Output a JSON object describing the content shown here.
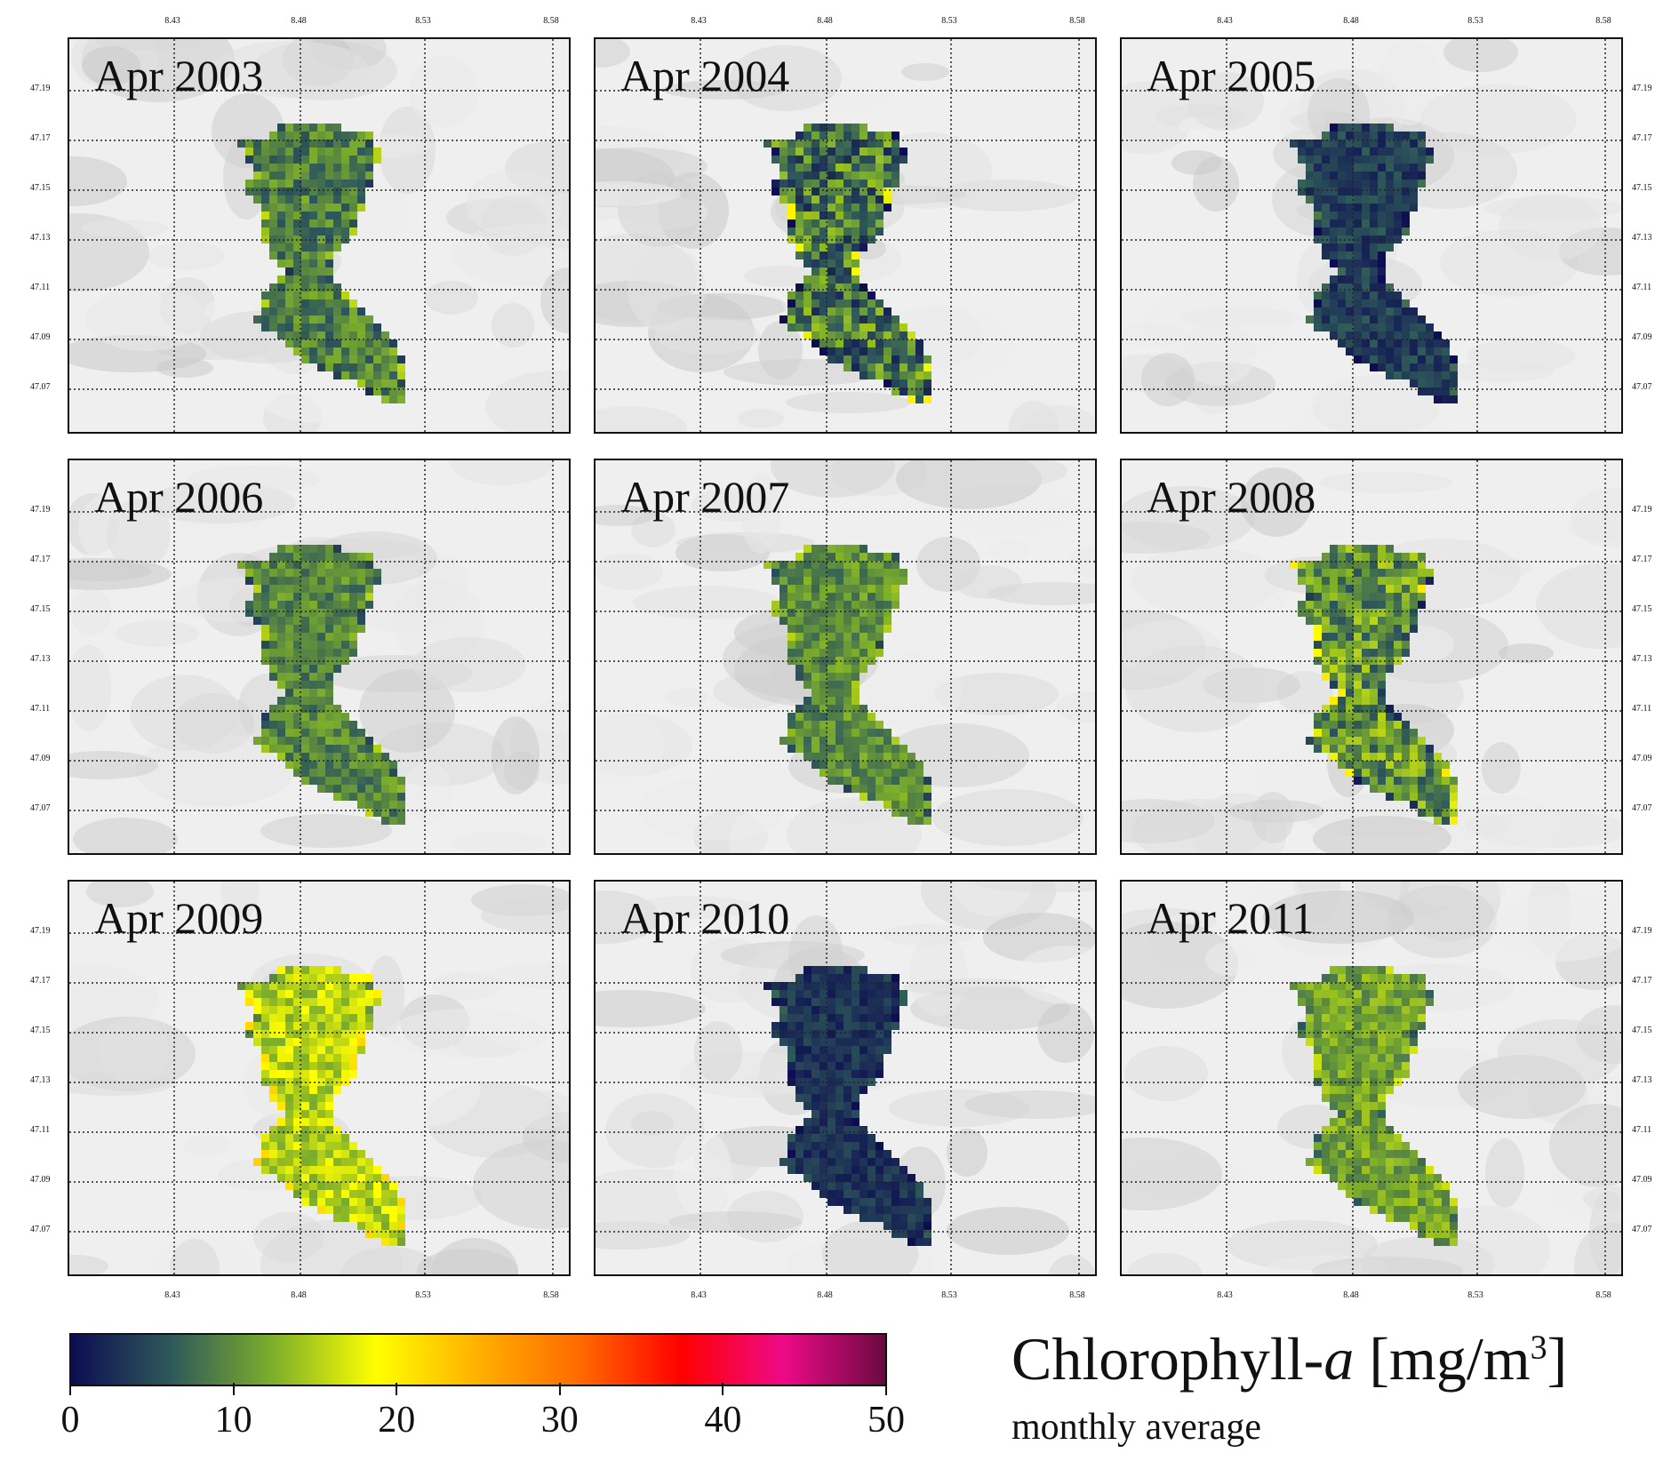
{
  "panels": [
    {
      "title": "Apr 2003",
      "mean": 9.0,
      "spread": 3.5
    },
    {
      "title": "Apr 2004",
      "mean": 8.0,
      "spread": 6.0
    },
    {
      "title": "Apr 2005",
      "mean": 4.0,
      "spread": 2.5
    },
    {
      "title": "Apr 2006",
      "mean": 9.5,
      "spread": 3.0
    },
    {
      "title": "Apr 2007",
      "mean": 10.0,
      "spread": 3.0
    },
    {
      "title": "Apr 2008",
      "mean": 10.5,
      "spread": 5.0
    },
    {
      "title": "Apr 2009",
      "mean": 15.5,
      "spread": 3.5
    },
    {
      "title": "Apr 2010",
      "mean": 3.0,
      "spread": 2.0
    },
    {
      "title": "Apr 2011",
      "mean": 11.5,
      "spread": 3.0
    }
  ],
  "lon_ticks": [
    "8.43",
    "8.48",
    "8.53",
    "8.58"
  ],
  "lat_ticks": [
    "47.19",
    "47.17",
    "47.15",
    "47.13",
    "47.11",
    "47.09",
    "47.07"
  ],
  "colorbar": {
    "ticks": [
      "0",
      "10",
      "20",
      "30",
      "40",
      "50"
    ],
    "min": 0,
    "max": 50,
    "stops": [
      "#0d0d52",
      "#2f5a5a",
      "#7fb02a",
      "#ffff00",
      "#ffb000",
      "#ff6a00",
      "#ff0000",
      "#ee0a88",
      "#6a0a40"
    ]
  },
  "legend": {
    "title": "Chlorophyll-a [mg/m³]",
    "title_main": "Chlorophyll-",
    "title_italic": "a",
    "title_unit_open": " [mg/m",
    "title_sup": "3",
    "title_unit_close": "]",
    "subtitle": "monthly average"
  }
}
